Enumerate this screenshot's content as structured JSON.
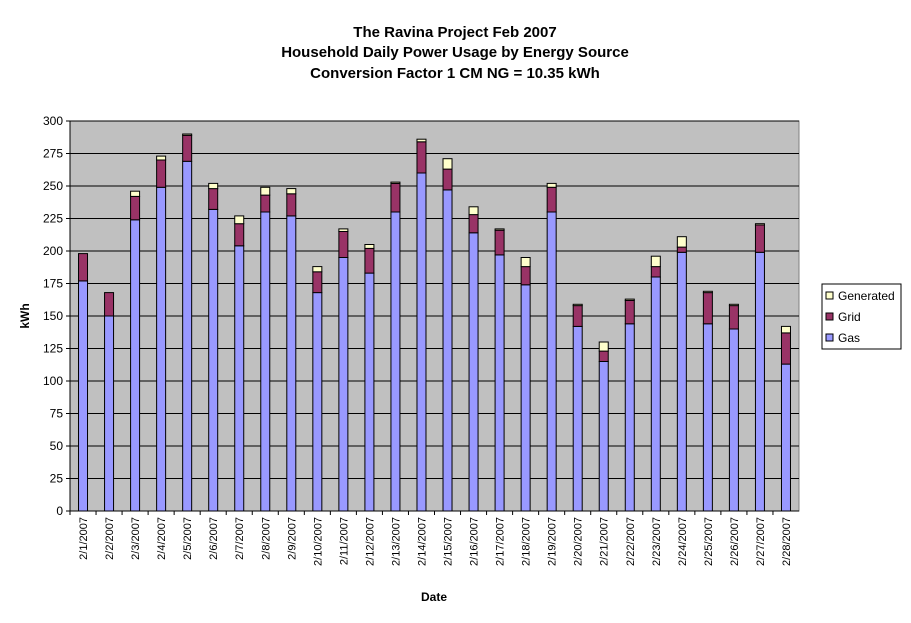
{
  "chart_data": {
    "type": "bar",
    "stacked": true,
    "title": "The Ravina Project Feb 2007",
    "subtitle_lines": [
      "Household Daily Power Usage by Energy Source",
      "Conversion Factor 1 CM NG = 10.35 kWh"
    ],
    "xlabel": "Date",
    "ylabel": "kWh",
    "ylim": [
      0,
      300
    ],
    "yticks": [
      0,
      25,
      50,
      75,
      100,
      125,
      150,
      175,
      200,
      225,
      250,
      275,
      300
    ],
    "grid": true,
    "legend_position": "right",
    "categories": [
      "2/1/2007",
      "2/2/2007",
      "2/3/2007",
      "2/4/2007",
      "2/5/2007",
      "2/6/2007",
      "2/7/2007",
      "2/8/2007",
      "2/9/2007",
      "2/10/2007",
      "2/11/2007",
      "2/12/2007",
      "2/13/2007",
      "2/14/2007",
      "2/15/2007",
      "2/16/2007",
      "2/17/2007",
      "2/18/2007",
      "2/19/2007",
      "2/20/2007",
      "2/21/2007",
      "2/22/2007",
      "2/23/2007",
      "2/24/2007",
      "2/25/2007",
      "2/26/2007",
      "2/27/2007",
      "2/28/2007"
    ],
    "series": [
      {
        "name": "Gas",
        "color": "#9999ff",
        "values": [
          177,
          150,
          224,
          249,
          269,
          232,
          204,
          230,
          227,
          168,
          195,
          183,
          230,
          260,
          247,
          214,
          197,
          174,
          230,
          142,
          115,
          144,
          180,
          199,
          144,
          140,
          199,
          113
        ]
      },
      {
        "name": "Grid",
        "color": "#993366",
        "values": [
          21,
          18,
          18,
          21,
          20,
          16,
          17,
          13,
          17,
          16,
          20,
          19,
          22,
          24,
          16,
          14,
          19,
          14,
          19,
          16,
          8,
          18,
          8,
          4,
          24,
          18,
          21,
          24
        ]
      },
      {
        "name": "Generated",
        "color": "#ffffcc",
        "values": [
          0,
          0,
          4,
          3,
          1,
          4,
          6,
          6,
          4,
          4,
          2,
          3,
          1,
          2,
          8,
          6,
          1,
          7,
          3,
          1,
          7,
          1,
          8,
          8,
          1,
          1,
          1,
          5
        ]
      }
    ]
  }
}
